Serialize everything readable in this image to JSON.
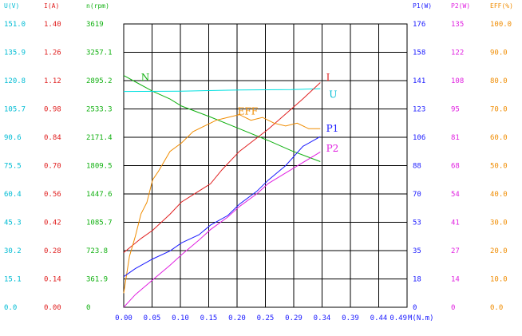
{
  "chart_data": {
    "type": "line",
    "title": "",
    "x": {
      "label": "M(N.m)",
      "ticks": [
        "0.00",
        "0.05",
        "0.10",
        "0.15",
        "0.20",
        "0.25",
        "0.29",
        "0.34",
        "0.39",
        "0.44",
        "0.49"
      ],
      "range": [
        0,
        0.49
      ]
    },
    "left_axes": [
      {
        "label": "U(V)",
        "color": "#00bcd4",
        "ticks": [
          "0.0",
          "15.1",
          "30.2",
          "45.3",
          "60.4",
          "75.5",
          "90.6",
          "105.7",
          "120.8",
          "135.9",
          "151.0"
        ],
        "range": [
          0,
          151.0
        ]
      },
      {
        "label": "I(A)",
        "color": "#e02020",
        "ticks": [
          "0.00",
          "0.14",
          "0.28",
          "0.42",
          "0.56",
          "0.70",
          "0.84",
          "0.98",
          "1.12",
          "1.26",
          "1.40"
        ],
        "range": [
          0,
          1.4
        ]
      },
      {
        "label": "n(rpm)",
        "color": "#10b010",
        "ticks": [
          "0",
          "361.9",
          "723.8",
          "1085.7",
          "1447.6",
          "1809.5",
          "2171.4",
          "2533.3",
          "2895.2",
          "3257.1",
          "3619"
        ],
        "range": [
          0,
          3619
        ]
      }
    ],
    "right_axes": [
      {
        "label": "P1(W)",
        "color": "#1a1aff",
        "ticks": [
          "0",
          "18",
          "35",
          "53",
          "70",
          "88",
          "106",
          "123",
          "141",
          "158",
          "176"
        ],
        "range": [
          0,
          176
        ]
      },
      {
        "label": "P2(W)",
        "color": "#e020e0",
        "ticks": [
          "0",
          "14",
          "27",
          "41",
          "54",
          "68",
          "81",
          "95",
          "108",
          "122",
          "135"
        ],
        "range": [
          0,
          135
        ]
      },
      {
        "label": "EFF(%)",
        "color": "#f08c00",
        "ticks": [
          "0.0",
          "10.0",
          "20.0",
          "30.0",
          "40.0",
          "50.0",
          "60.0",
          "70.0",
          "80.0",
          "90.0",
          "100.0"
        ],
        "range": [
          0,
          100
        ]
      }
    ],
    "series": [
      {
        "name": "N",
        "color": "#10b010",
        "axis": "n(rpm)",
        "points": [
          [
            0,
            2960
          ],
          [
            0.02,
            2880
          ],
          [
            0.05,
            2760
          ],
          [
            0.08,
            2660
          ],
          [
            0.1,
            2570
          ],
          [
            0.15,
            2430
          ],
          [
            0.2,
            2280
          ],
          [
            0.25,
            2130
          ],
          [
            0.29,
            2000
          ],
          [
            0.34,
            1860
          ]
        ]
      },
      {
        "name": "U",
        "color": "#00e0e0",
        "axis": "U(V)",
        "points": [
          [
            0,
            115.0
          ],
          [
            0.1,
            115.2
          ],
          [
            0.2,
            115.8
          ],
          [
            0.29,
            116.0
          ],
          [
            0.34,
            116.5
          ]
        ]
      },
      {
        "name": "I",
        "color": "#e02020",
        "axis": "I(A)",
        "points": [
          [
            0,
            0.27
          ],
          [
            0.03,
            0.34
          ],
          [
            0.05,
            0.38
          ],
          [
            0.08,
            0.46
          ],
          [
            0.1,
            0.52
          ],
          [
            0.15,
            0.61
          ],
          [
            0.17,
            0.68
          ],
          [
            0.2,
            0.77
          ],
          [
            0.25,
            0.88
          ],
          [
            0.29,
            0.98
          ],
          [
            0.31,
            1.03
          ],
          [
            0.34,
            1.11
          ]
        ]
      },
      {
        "name": "EFF",
        "color": "#f08c00",
        "axis": "EFF(%)",
        "points": [
          [
            0,
            5
          ],
          [
            0.01,
            18
          ],
          [
            0.02,
            25
          ],
          [
            0.03,
            33
          ],
          [
            0.04,
            37
          ],
          [
            0.05,
            45
          ],
          [
            0.06,
            48
          ],
          [
            0.08,
            55
          ],
          [
            0.1,
            58
          ],
          [
            0.12,
            62
          ],
          [
            0.14,
            64
          ],
          [
            0.16,
            66
          ],
          [
            0.18,
            67
          ],
          [
            0.2,
            68
          ],
          [
            0.22,
            66
          ],
          [
            0.24,
            67
          ],
          [
            0.26,
            65
          ],
          [
            0.28,
            64
          ],
          [
            0.3,
            65
          ],
          [
            0.32,
            63
          ],
          [
            0.34,
            63
          ]
        ]
      },
      {
        "name": "P1",
        "color": "#1a1aff",
        "axis": "P1(W)",
        "points": [
          [
            0,
            19
          ],
          [
            0.02,
            24
          ],
          [
            0.05,
            30
          ],
          [
            0.08,
            35
          ],
          [
            0.1,
            40
          ],
          [
            0.13,
            45
          ],
          [
            0.15,
            51
          ],
          [
            0.18,
            57
          ],
          [
            0.2,
            64
          ],
          [
            0.23,
            72
          ],
          [
            0.25,
            79
          ],
          [
            0.28,
            88
          ],
          [
            0.31,
            100
          ],
          [
            0.34,
            106
          ]
        ]
      },
      {
        "name": "P2",
        "color": "#e020e0",
        "axis": "P2(W)",
        "points": [
          [
            0,
            0
          ],
          [
            0.02,
            6
          ],
          [
            0.05,
            13
          ],
          [
            0.08,
            20
          ],
          [
            0.1,
            25
          ],
          [
            0.13,
            32
          ],
          [
            0.15,
            37
          ],
          [
            0.18,
            43
          ],
          [
            0.2,
            48
          ],
          [
            0.23,
            54
          ],
          [
            0.25,
            59
          ],
          [
            0.28,
            64
          ],
          [
            0.31,
            69
          ],
          [
            0.34,
            74
          ]
        ]
      }
    ],
    "curve_labels": [
      {
        "text": "N",
        "color": "#10b010",
        "x": 0.03,
        "y": 0.8
      },
      {
        "text": "U",
        "color": "#00bcd4",
        "x": 0.355,
        "y": 0.74
      },
      {
        "text": "I",
        "color": "#e02020",
        "x": 0.35,
        "y": 0.8
      },
      {
        "text": "EFF",
        "color": "#f08c00",
        "x": 0.197,
        "y": 0.68
      },
      {
        "text": "P1",
        "color": "#1a1aff",
        "x": 0.35,
        "y": 0.62
      },
      {
        "text": "P2",
        "color": "#e020e0",
        "x": 0.35,
        "y": 0.55
      }
    ],
    "grid": true,
    "legend": "none"
  }
}
